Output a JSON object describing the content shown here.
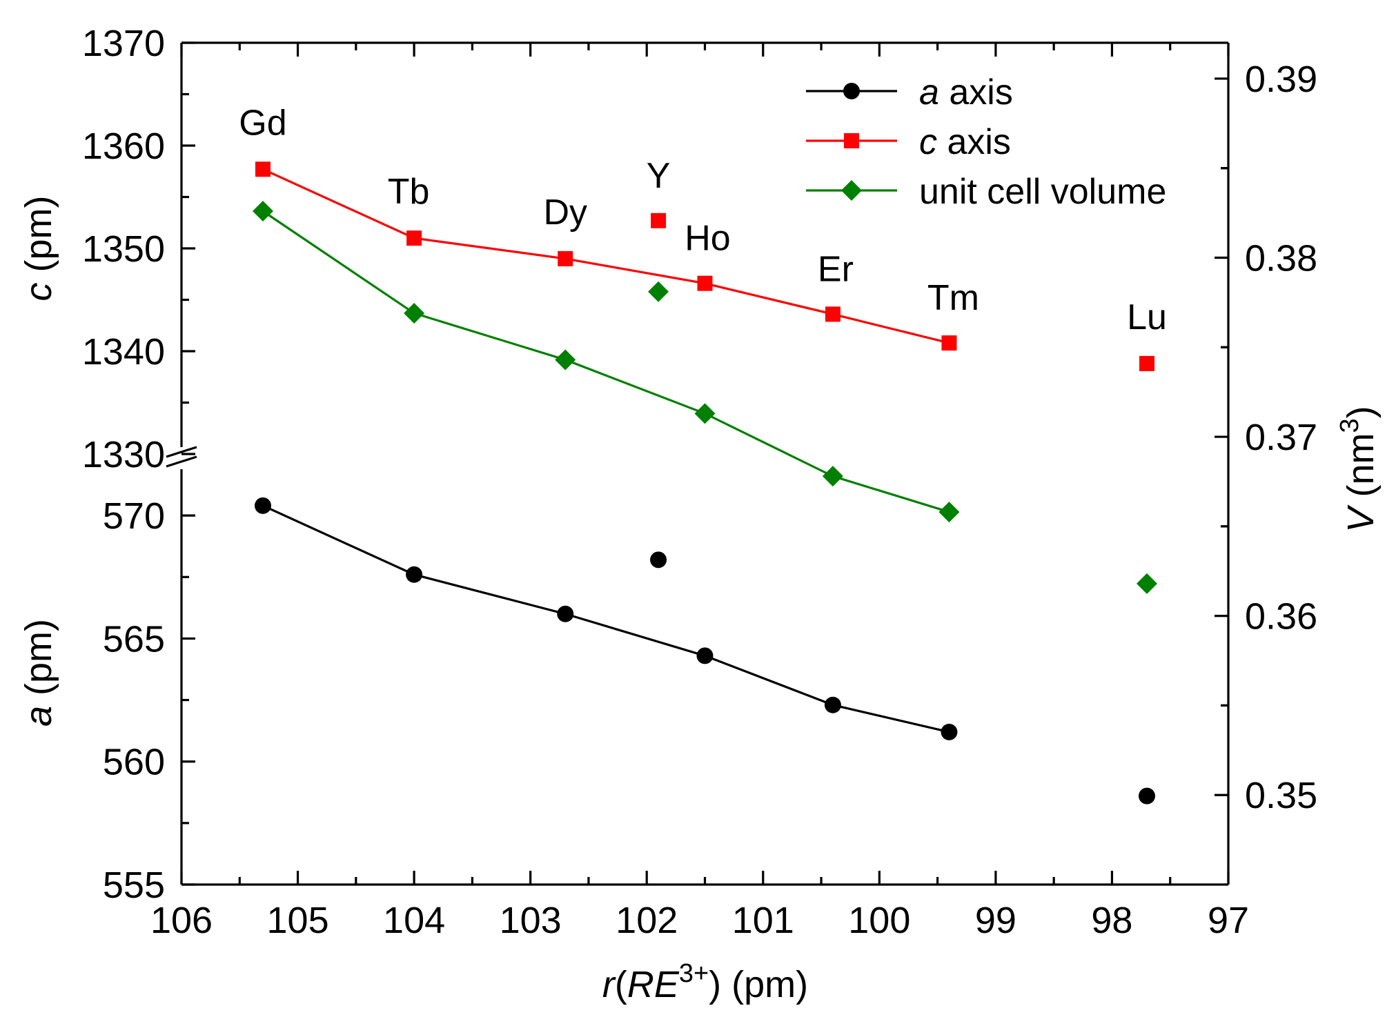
{
  "chart_data": {
    "type": "line",
    "x_label": {
      "prefix": "r(",
      "sym": "RE",
      "sup": "3+",
      "suffix": ") (pm)"
    },
    "left_label_top": {
      "italic": "c",
      "rest": " (pm)"
    },
    "left_label_bottom": {
      "italic": "a",
      "rest": " (pm)"
    },
    "right_label": {
      "italic": "V",
      "rest": " (nm",
      "sup": "3",
      "close": ")"
    },
    "x_axis": {
      "range": [
        106,
        97
      ],
      "ticks": [
        "106",
        "105",
        "104",
        "103",
        "102",
        "101",
        "100",
        "99",
        "98",
        "97"
      ]
    },
    "c_axis": {
      "range": [
        1330,
        1370
      ],
      "ticks": [
        "1330",
        "1340",
        "1350",
        "1360",
        "1370"
      ]
    },
    "a_axis": {
      "range": [
        555,
        572.5
      ],
      "ticks": [
        "555",
        "560",
        "565",
        "570"
      ]
    },
    "v_axis": {
      "range": [
        0.345,
        0.392
      ],
      "ticks": [
        "0.35",
        "0.36",
        "0.37",
        "0.38",
        "0.39"
      ]
    },
    "elements": [
      {
        "label": "Gd",
        "r": 105.3,
        "c": 1357.7,
        "a": 570.4,
        "v": 0.3826
      },
      {
        "label": "Tb",
        "r": 104.0,
        "c": 1351.0,
        "a": 567.6,
        "v": 0.3769
      },
      {
        "label": "Dy",
        "r": 102.7,
        "c": 1349.0,
        "a": 566.0,
        "v": 0.3743
      },
      {
        "label": "Y",
        "r": 101.9,
        "c": 1352.7,
        "a": 568.2,
        "v": 0.3781
      },
      {
        "label": "Ho",
        "r": 101.5,
        "c": 1346.6,
        "a": 564.3,
        "v": 0.3713
      },
      {
        "label": "Er",
        "r": 100.4,
        "c": 1343.6,
        "a": 562.3,
        "v": 0.3678
      },
      {
        "label": "Tm",
        "r": 99.4,
        "c": 1340.8,
        "a": 561.2,
        "v": 0.3658
      },
      {
        "label": "Lu",
        "r": 97.7,
        "c": 1338.8,
        "a": 558.6,
        "v": 0.3618
      }
    ],
    "series": [
      {
        "name": "a axis",
        "italic": "a",
        "rest": " axis",
        "key": "a",
        "color": "#000000",
        "marker": "circle",
        "connected": [
          "Gd",
          "Tb",
          "Dy",
          "Ho",
          "Er",
          "Tm"
        ]
      },
      {
        "name": "c axis",
        "italic": "c",
        "rest": " axis",
        "key": "c",
        "color": "#ff0000",
        "marker": "square",
        "connected": [
          "Gd",
          "Tb",
          "Dy",
          "Ho",
          "Er",
          "Tm"
        ]
      },
      {
        "name": "unit cell volume",
        "italic": "",
        "rest": "unit cell volume",
        "key": "v",
        "color": "#008000",
        "marker": "diamond",
        "connected": [
          "Gd",
          "Tb",
          "Dy",
          "Ho",
          "Er",
          "Tm"
        ]
      }
    ],
    "legend_position": "top-right"
  }
}
